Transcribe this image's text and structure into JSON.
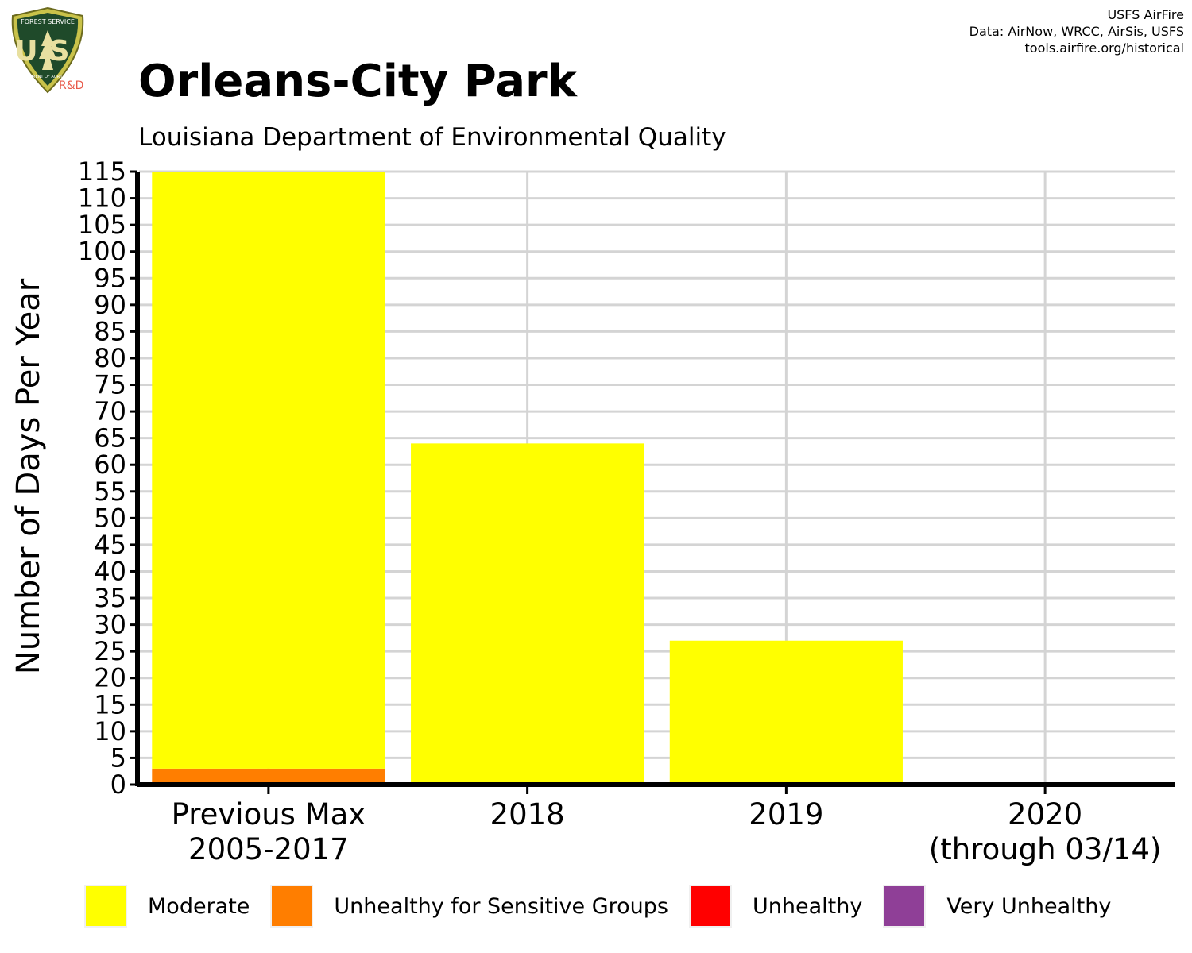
{
  "header": {
    "title": "Orleans-City Park",
    "subtitle": "Louisiana Department of Environmental Quality",
    "credits": [
      "USFS AirFire",
      "Data: AirNow, WRCC, AirSis, USFS",
      "tools.airfire.org/historical"
    ],
    "logo_text": {
      "top": "FOREST SERVICE",
      "main": "US",
      "bottom": "DEPARTMENT OF AGRICULTURE",
      "tag": "R&D"
    }
  },
  "chart_data": {
    "type": "bar",
    "stacked": true,
    "title": "Orleans-City Park",
    "subtitle": "Louisiana Department of Environmental Quality",
    "xlabel": "",
    "ylabel": "Number of Days Per Year",
    "ylim": [
      0,
      115
    ],
    "yticks": [
      0,
      5,
      10,
      15,
      20,
      25,
      30,
      35,
      40,
      45,
      50,
      55,
      60,
      65,
      70,
      75,
      80,
      85,
      90,
      95,
      100,
      105,
      110,
      115
    ],
    "grid": true,
    "legend_position": "bottom",
    "categories": [
      [
        "Previous Max",
        "2005-2017"
      ],
      [
        "2018"
      ],
      [
        "2019"
      ],
      [
        "2020",
        "(through 03/14)"
      ]
    ],
    "series": [
      {
        "name": "Very Unhealthy",
        "color": "#8F3F97",
        "values": [
          0,
          0,
          0,
          0
        ]
      },
      {
        "name": "Unhealthy",
        "color": "#FF0000",
        "values": [
          0,
          0,
          0,
          0
        ]
      },
      {
        "name": "Unhealthy for Sensitive Groups",
        "color": "#FF7E00",
        "values": [
          3,
          0,
          0,
          0
        ]
      },
      {
        "name": "Moderate",
        "color": "#FFFF00",
        "values": [
          112,
          64,
          27,
          0
        ]
      }
    ],
    "legend_order": [
      "Moderate",
      "Unhealthy for Sensitive Groups",
      "Unhealthy",
      "Very Unhealthy"
    ]
  }
}
